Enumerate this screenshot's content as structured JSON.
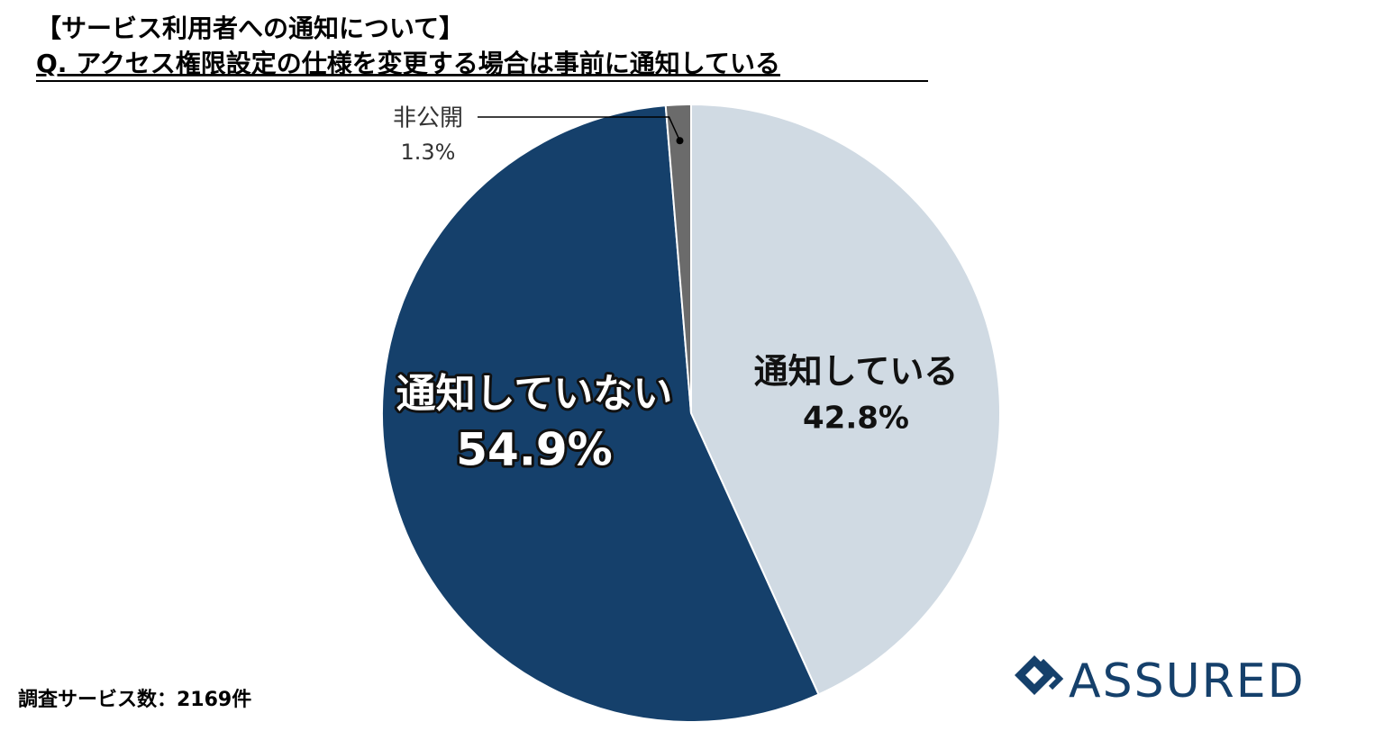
{
  "chart_data": {
    "type": "pie",
    "title": "【サービス利用者への通知について】",
    "subtitle": "Q. アクセス権限設定の仕様を変更する場合は事前に通知している",
    "categories": [
      "通知している",
      "通知していない",
      "非公開"
    ],
    "values": [
      42.8,
      54.9,
      1.3
    ],
    "value_labels": [
      "42.8%",
      "54.9%",
      "1.3%"
    ],
    "colors": [
      "#d0dae3",
      "#15406b",
      "#6b6b6b"
    ]
  },
  "footnote": "調査サービス数：2169件",
  "logo": {
    "text": "ASSURED"
  }
}
